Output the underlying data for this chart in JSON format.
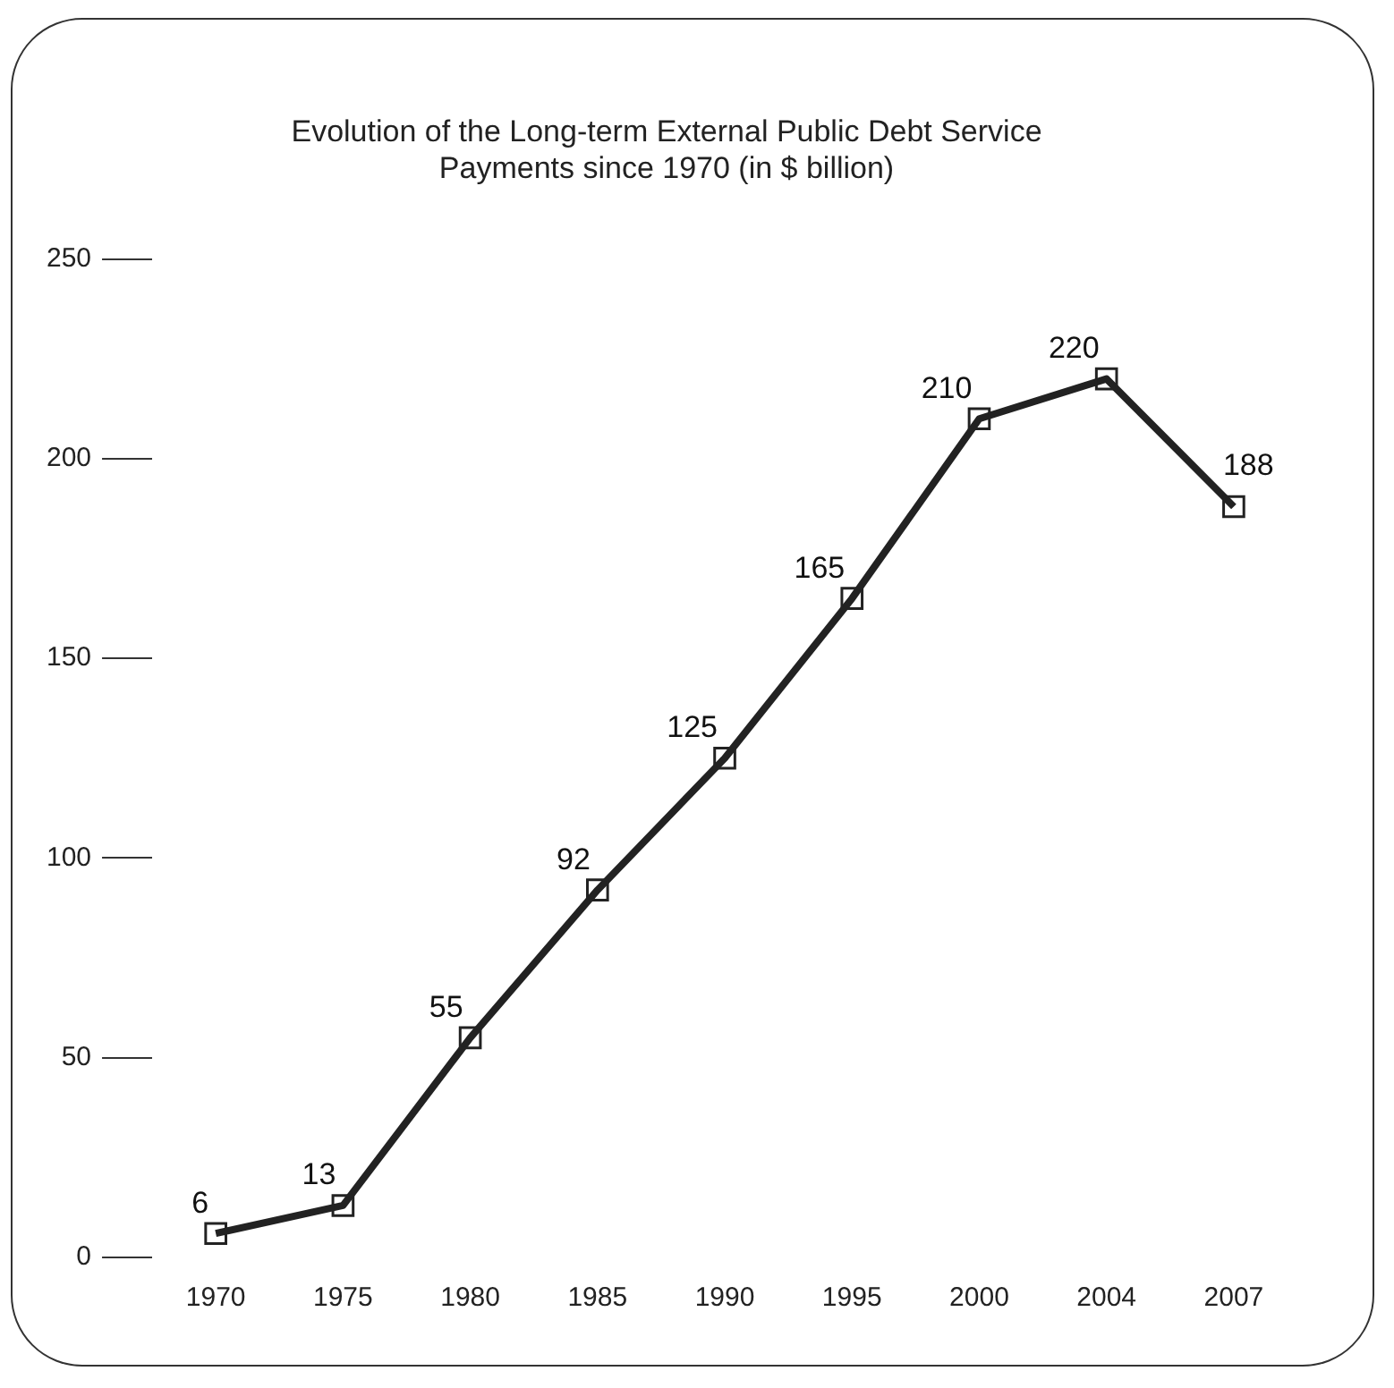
{
  "chart_data": {
    "type": "line",
    "title": [
      "Evolution of the Long-term External Public Debt Service",
      "Payments since 1970 (in $ billion)"
    ],
    "categories": [
      "1970",
      "1975",
      "1980",
      "1985",
      "1990",
      "1995",
      "2000",
      "2004",
      "2007"
    ],
    "values": [
      6,
      13,
      55,
      92,
      125,
      165,
      210,
      220,
      188
    ],
    "color": "#222222",
    "marker": "square",
    "line_style": "solid",
    "data_labels": true,
    "grid": false,
    "legend": false,
    "ylim": [
      0,
      250
    ],
    "yticks": [
      0,
      50,
      100,
      150,
      200,
      250
    ]
  }
}
